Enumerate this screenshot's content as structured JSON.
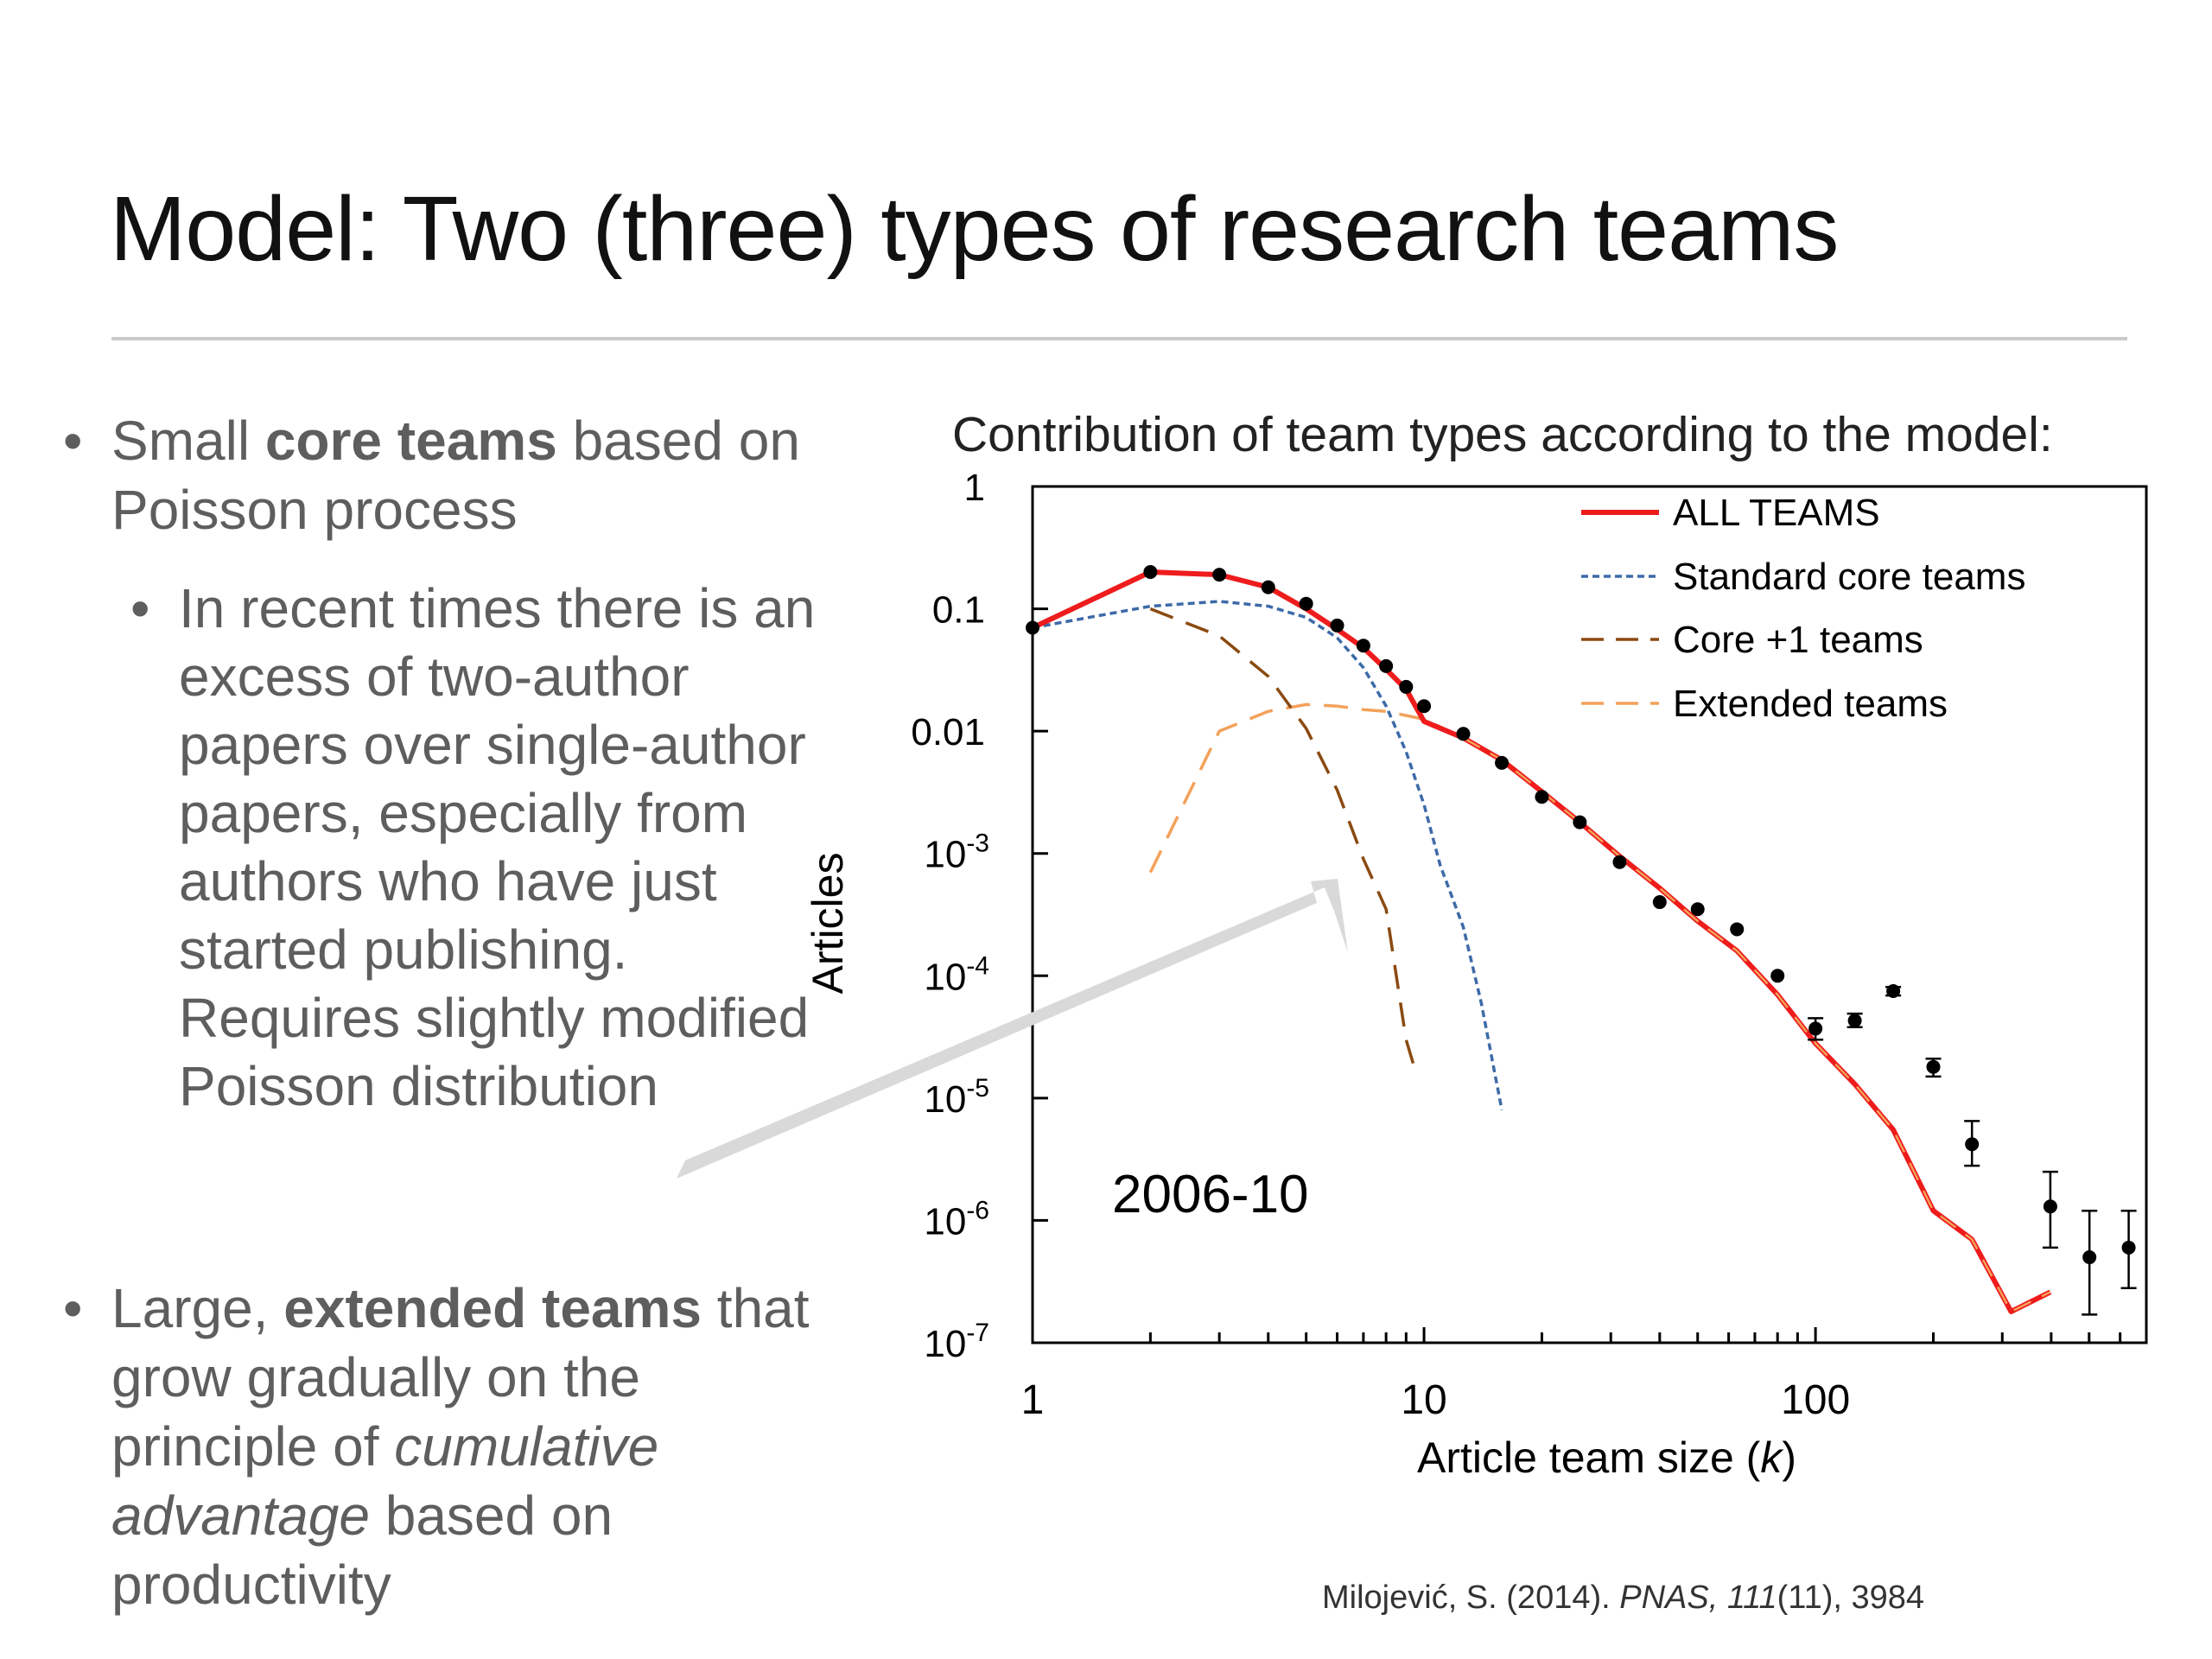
{
  "slide": {
    "title": "Model: Two (three) types of research teams",
    "bullets": [
      {
        "parts": [
          {
            "text": "Small ",
            "style": "normal"
          },
          {
            "text": "core teams",
            "style": "bold"
          },
          {
            "text": " based on Poisson process",
            "style": "normal"
          }
        ],
        "sub": [
          {
            "text": "In recent times there is an excess of two-author papers over single-author papers, especially from authors who have just started publishing. Requires slightly modified Poisson distribution"
          }
        ]
      },
      {
        "parts": [
          {
            "text": "Large, ",
            "style": "normal"
          },
          {
            "text": "extended teams",
            "style": "bold"
          },
          {
            "text": " that grow gradually on the principle of ",
            "style": "normal"
          },
          {
            "text": "cumulative advantage",
            "style": "italic"
          },
          {
            "text": " based on productivity",
            "style": "normal"
          }
        ]
      }
    ],
    "chart_caption": "Contribution of team types according to the model:",
    "citation": {
      "author": "Milojević, S.",
      "year": " (2014). ",
      "journal": "PNAS, 111",
      "issue": "(11), 3984"
    }
  },
  "colors": {
    "all_teams": "#ee1c1c",
    "standard_core": "#3d6aa8",
    "core_plus_one": "#8a4a10",
    "extended": "#f3a15a",
    "arrow": "#d9d9d9",
    "text_gray": "#5e5e5e"
  },
  "chart_data": {
    "type": "line",
    "xlabel": "Article team size (k)",
    "ylabel": "Articles",
    "x_scale": "log",
    "y_scale": "log",
    "xlim": [
      1,
      700
    ],
    "ylim": [
      1e-07,
      1
    ],
    "x_ticks": [
      1,
      10,
      100
    ],
    "x_tick_labels": [
      "1",
      "10",
      "100"
    ],
    "y_ticks": [
      1,
      0.1,
      0.01,
      0.001,
      0.0001,
      1e-05,
      1e-06,
      1e-07
    ],
    "y_tick_labels": [
      {
        "base": "1",
        "exp": ""
      },
      {
        "base": "0.1",
        "exp": ""
      },
      {
        "base": "0.01",
        "exp": ""
      },
      {
        "base": "10",
        "exp": "-3"
      },
      {
        "base": "10",
        "exp": "-4"
      },
      {
        "base": "10",
        "exp": "-5"
      },
      {
        "base": "10",
        "exp": "-6"
      },
      {
        "base": "10",
        "exp": "-7"
      }
    ],
    "annotation": "2006-10",
    "legend_position": "top-right",
    "series": [
      {
        "name": "ALL TEAMS",
        "style": "solid",
        "color": "#ee1c1c",
        "points": [
          [
            1,
            0.07
          ],
          [
            2,
            0.2
          ],
          [
            3,
            0.19
          ],
          [
            4,
            0.15
          ],
          [
            5,
            0.1
          ],
          [
            6,
            0.068
          ],
          [
            7,
            0.048
          ],
          [
            8,
            0.032
          ],
          [
            9,
            0.022
          ],
          [
            10,
            0.012
          ],
          [
            12.6,
            0.0088
          ],
          [
            15.8,
            0.0058
          ],
          [
            20,
            0.0032
          ],
          [
            25,
            0.0018
          ],
          [
            31.6,
            0.00095
          ],
          [
            40,
            0.00052
          ],
          [
            50,
            0.00028
          ],
          [
            63,
            0.00016
          ],
          [
            80,
            7e-05
          ],
          [
            100,
            2.8e-05
          ],
          [
            126,
            1.3e-05
          ],
          [
            158,
            5.5e-06
          ],
          [
            200,
            1.2e-06
          ],
          [
            251,
            7e-07
          ],
          [
            316,
            1.8e-07
          ],
          [
            398,
            2.6e-07
          ]
        ]
      },
      {
        "name": "Standard core teams",
        "style": "dotted",
        "color": "#3d6aa8",
        "points": [
          [
            1,
            0.07
          ],
          [
            2,
            0.105
          ],
          [
            3,
            0.115
          ],
          [
            4,
            0.105
          ],
          [
            5,
            0.085
          ],
          [
            6,
            0.058
          ],
          [
            7,
            0.033
          ],
          [
            8,
            0.016
          ],
          [
            9,
            0.0068
          ],
          [
            10,
            0.0025
          ],
          [
            11,
            0.0008
          ],
          [
            12.6,
            0.00025
          ],
          [
            14,
            6e-05
          ],
          [
            15.8,
            8e-06
          ]
        ]
      },
      {
        "name": "Core +1 teams",
        "style": "dashed",
        "color": "#8a4a10",
        "points": [
          [
            2,
            0.1
          ],
          [
            3,
            0.06
          ],
          [
            4,
            0.028
          ],
          [
            5,
            0.0105
          ],
          [
            6,
            0.0033
          ],
          [
            7,
            0.0009
          ],
          [
            8,
            0.00035
          ],
          [
            9,
            3e-05
          ],
          [
            9.6,
            1.5e-05
          ]
        ]
      },
      {
        "name": "Extended teams",
        "style": "dashed",
        "color": "#f3a15a",
        "points": [
          [
            2,
            0.0007
          ],
          [
            3,
            0.01
          ],
          [
            4,
            0.0145
          ],
          [
            5,
            0.0165
          ],
          [
            6,
            0.016
          ],
          [
            7,
            0.015
          ],
          [
            8,
            0.0145
          ],
          [
            10,
            0.0125
          ],
          [
            12.6,
            0.0088
          ],
          [
            15.8,
            0.0058
          ],
          [
            20,
            0.0032
          ],
          [
            25,
            0.0018
          ],
          [
            31.6,
            0.00095
          ],
          [
            40,
            0.00052
          ],
          [
            50,
            0.00028
          ],
          [
            63,
            0.00016
          ],
          [
            80,
            7e-05
          ],
          [
            100,
            2.8e-05
          ],
          [
            126,
            1.3e-05
          ],
          [
            158,
            5.5e-06
          ],
          [
            200,
            1.2e-06
          ],
          [
            251,
            7e-07
          ],
          [
            316,
            1.8e-07
          ],
          [
            398,
            2.6e-07
          ]
        ]
      }
    ],
    "observed_points": [
      {
        "x": 1,
        "y": 0.07
      },
      {
        "x": 2,
        "y": 0.2
      },
      {
        "x": 3,
        "y": 0.19
      },
      {
        "x": 4,
        "y": 0.15
      },
      {
        "x": 5,
        "y": 0.11
      },
      {
        "x": 6,
        "y": 0.073
      },
      {
        "x": 7,
        "y": 0.05
      },
      {
        "x": 8,
        "y": 0.034
      },
      {
        "x": 9,
        "y": 0.023
      },
      {
        "x": 10,
        "y": 0.016
      },
      {
        "x": 12.6,
        "y": 0.0095
      },
      {
        "x": 15.8,
        "y": 0.0055
      },
      {
        "x": 20,
        "y": 0.0029
      },
      {
        "x": 25,
        "y": 0.0018
      },
      {
        "x": 31.6,
        "y": 0.00085
      },
      {
        "x": 40,
        "y": 0.0004
      },
      {
        "x": 50,
        "y": 0.00035
      },
      {
        "x": 63,
        "y": 0.00024
      },
      {
        "x": 80,
        "y": 0.0001
      },
      {
        "x": 100,
        "y": 3.7e-05,
        "err": [
          3e-05,
          4.5e-05
        ]
      },
      {
        "x": 126,
        "y": 4.3e-05,
        "err": [
          3.8e-05,
          4.9e-05
        ]
      },
      {
        "x": 158,
        "y": 7.5e-05,
        "err": [
          6.9e-05,
          8.1e-05
        ]
      },
      {
        "x": 200,
        "y": 1.8e-05,
        "err": [
          1.5e-05,
          2.1e-05
        ]
      },
      {
        "x": 251,
        "y": 4.2e-06,
        "err": [
          2.8e-06,
          6.5e-06
        ]
      },
      {
        "x": 398,
        "y": 1.3e-06,
        "err": [
          6e-07,
          2.5e-06
        ]
      },
      {
        "x": 501,
        "y": 5e-07,
        "err": [
          1.7e-07,
          1.2e-06
        ]
      },
      {
        "x": 631,
        "y": 6e-07,
        "err": [
          2.8e-07,
          1.2e-06
        ]
      }
    ]
  }
}
